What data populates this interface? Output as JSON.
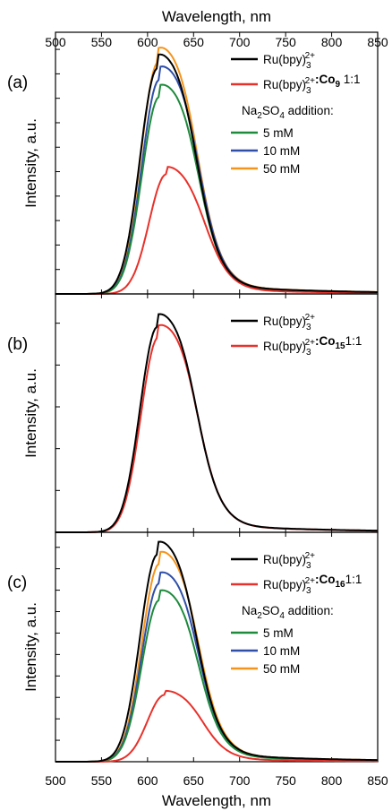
{
  "figure": {
    "xlabel_top": "Wavelength, nm",
    "xlabel_bottom": "Wavelength, nm",
    "x_ticks": [
      500,
      550,
      600,
      650,
      700,
      750,
      800,
      850
    ]
  },
  "chart_data": [
    {
      "type": "line",
      "panel_label": "(a)",
      "ylabel": "Intensity, a.u.",
      "xlim": [
        500,
        850
      ],
      "ylim": [
        0,
        1.15
      ],
      "y_tick_count": 10,
      "legend_position": "top-right",
      "legend_group_title": "Na2SO4 addition:",
      "series": [
        {
          "name": "Ru(bpy)3 2+",
          "label_base": "Ru(bpy)",
          "label_sub": "3",
          "label_sup": "2+",
          "label_bold": "",
          "label_bold_sub": "",
          "label_tail": "",
          "color": "#000000",
          "peak_x": 610,
          "peak_y": 1.05,
          "shoulder": 0.16
        },
        {
          "name": "Ru(bpy)3 2+:Co9 1:1",
          "label_base": "Ru(bpy)",
          "label_sub": "3",
          "label_sup": "2+",
          "label_bold": ":Co",
          "label_bold_sub": "9",
          "label_tail": " 1:1",
          "color": "#e8312a",
          "peak_x": 620,
          "peak_y": 0.55,
          "shoulder": 0.12
        },
        {
          "name": "5 mM",
          "label_base": "5 mM",
          "label_sub": "",
          "label_sup": "",
          "label_bold": "",
          "label_bold_sub": "",
          "label_tail": "",
          "color": "#1e8a3c",
          "peak_x": 612,
          "peak_y": 0.92,
          "shoulder": 0.17
        },
        {
          "name": "10 mM",
          "label_base": "10 mM",
          "label_sub": "",
          "label_sup": "",
          "label_bold": "",
          "label_bold_sub": "",
          "label_tail": "",
          "color": "#2f4fa8",
          "peak_x": 612,
          "peak_y": 1.0,
          "shoulder": 0.17
        },
        {
          "name": "50 mM",
          "label_base": "50 mM",
          "label_sub": "",
          "label_sup": "",
          "label_bold": "",
          "label_bold_sub": "",
          "label_tail": "",
          "color": "#f5941d",
          "peak_x": 611,
          "peak_y": 1.08,
          "shoulder": 0.16
        }
      ]
    },
    {
      "type": "line",
      "panel_label": "(b)",
      "ylabel": "Intensity, a.u.",
      "xlim": [
        500,
        850
      ],
      "ylim": [
        0,
        1.15
      ],
      "y_tick_count": 5,
      "legend_position": "top-right",
      "legend_group_title": "",
      "series": [
        {
          "name": "Ru(bpy)3 2+",
          "label_base": "Ru(bpy)",
          "label_sub": "3",
          "label_sup": "2+",
          "label_bold": "",
          "label_bold_sub": "",
          "label_tail": "",
          "color": "#000000",
          "peak_x": 610,
          "peak_y": 1.05,
          "shoulder": 0.16
        },
        {
          "name": "Ru(bpy)3 2+:Co15 1:1",
          "label_base": "Ru(bpy)",
          "label_sub": "3",
          "label_sup": "2+",
          "label_bold": ":Co",
          "label_bold_sub": "15",
          "label_tail": "1:1",
          "color": "#e8312a",
          "peak_x": 611,
          "peak_y": 1.0,
          "shoulder": 0.17
        }
      ]
    },
    {
      "type": "line",
      "panel_label": "(c)",
      "ylabel": "Intensity, a.u.",
      "xlim": [
        500,
        850
      ],
      "ylim": [
        0,
        1.15
      ],
      "y_tick_count": 10,
      "legend_position": "top-right",
      "legend_group_title": "Na2SO4 addition:",
      "series": [
        {
          "name": "Ru(bpy)3 2+",
          "label_base": "Ru(bpy)",
          "label_sub": "3",
          "label_sup": "2+",
          "label_bold": "",
          "label_bold_sub": "",
          "label_tail": "",
          "color": "#000000",
          "peak_x": 610,
          "peak_y": 1.1,
          "shoulder": 0.16
        },
        {
          "name": "Ru(bpy)3 2+:Co16 1:1",
          "label_base": "Ru(bpy)",
          "label_sub": "3",
          "label_sup": "2+",
          "label_bold": ":Co",
          "label_bold_sub": "16",
          "label_tail": "1:1",
          "color": "#e8312a",
          "peak_x": 618,
          "peak_y": 0.35,
          "shoulder": 0.12
        },
        {
          "name": "5 mM",
          "label_base": "5 mM",
          "label_sub": "",
          "label_sup": "",
          "label_bold": "",
          "label_bold_sub": "",
          "label_tail": "",
          "color": "#1e8a3c",
          "peak_x": 612,
          "peak_y": 0.86,
          "shoulder": 0.17
        },
        {
          "name": "10 mM",
          "label_base": "10 mM",
          "label_sub": "",
          "label_sup": "",
          "label_bold": "",
          "label_bold_sub": "",
          "label_tail": "",
          "color": "#2f4fa8",
          "peak_x": 612,
          "peak_y": 0.95,
          "shoulder": 0.17
        },
        {
          "name": "50 mM",
          "label_base": "50 mM",
          "label_sub": "",
          "label_sup": "",
          "label_bold": "",
          "label_bold_sub": "",
          "label_tail": "",
          "color": "#f5941d",
          "peak_x": 612,
          "peak_y": 1.05,
          "shoulder": 0.16
        }
      ]
    }
  ]
}
